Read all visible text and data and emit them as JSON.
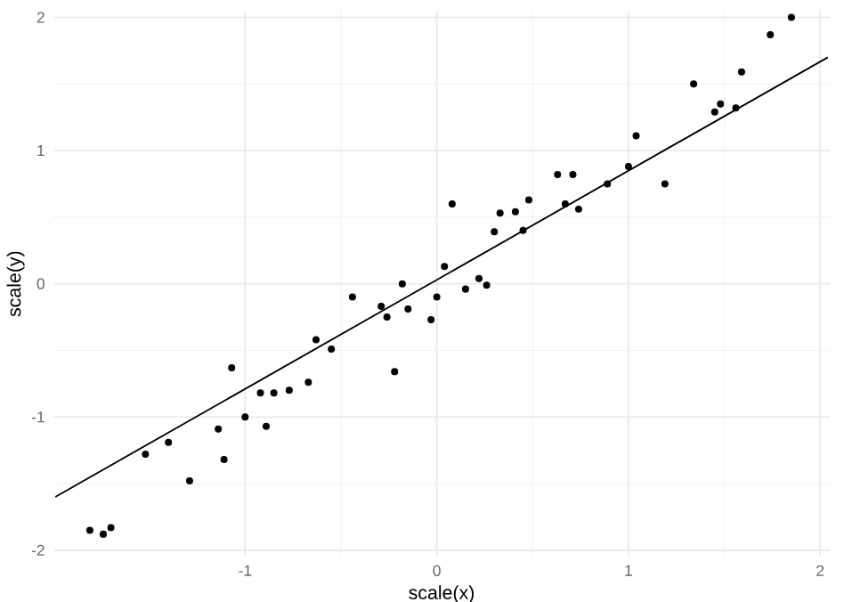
{
  "chart_data": {
    "type": "scatter",
    "xlabel": "scale(x)",
    "ylabel": "scale(y)",
    "xlim": [
      -2.0,
      2.05
    ],
    "ylim": [
      -2.05,
      2.05
    ],
    "xticks": [
      -1,
      0,
      1,
      2
    ],
    "yticks": [
      -2,
      -1,
      0,
      1,
      2
    ],
    "grid": true,
    "series": [
      {
        "color": "#000000",
        "marker": "circle",
        "x": [
          -1.81,
          -1.74,
          -1.7,
          -1.52,
          -1.4,
          -1.29,
          -1.14,
          -1.11,
          -1.07,
          -1.0,
          -0.92,
          -0.89,
          -0.85,
          -0.77,
          -0.67,
          -0.63,
          -0.55,
          -0.44,
          -0.29,
          -0.26,
          -0.22,
          -0.18,
          -0.15,
          -0.03,
          0.0,
          0.04,
          0.08,
          0.15,
          0.22,
          0.26,
          0.3,
          0.33,
          0.41,
          0.45,
          0.48,
          0.63,
          0.67,
          0.71,
          0.74,
          0.89,
          1.0,
          1.04,
          1.19,
          1.34,
          1.45,
          1.48,
          1.56,
          1.59,
          1.74,
          1.85
        ],
        "values": [
          -1.85,
          -1.88,
          -1.83,
          -1.28,
          -1.19,
          -1.48,
          -1.09,
          -1.32,
          -0.63,
          -1.0,
          -0.82,
          -1.07,
          -0.82,
          -0.8,
          -0.74,
          -0.42,
          -0.49,
          -0.1,
          -0.17,
          -0.25,
          -0.66,
          0.0,
          -0.19,
          -0.27,
          -0.1,
          0.13,
          0.6,
          -0.04,
          0.04,
          -0.01,
          0.39,
          0.53,
          0.54,
          0.4,
          0.63,
          0.82,
          0.6,
          0.82,
          0.56,
          0.75,
          0.88,
          1.11,
          0.75,
          1.5,
          1.29,
          1.35,
          1.32,
          1.59,
          1.87,
          2.0
        ]
      },
      {
        "type": "line",
        "marker": "none",
        "color": "#000000",
        "x": [
          -1.99,
          2.04
        ],
        "values": [
          -1.6,
          1.7
        ]
      }
    ]
  }
}
